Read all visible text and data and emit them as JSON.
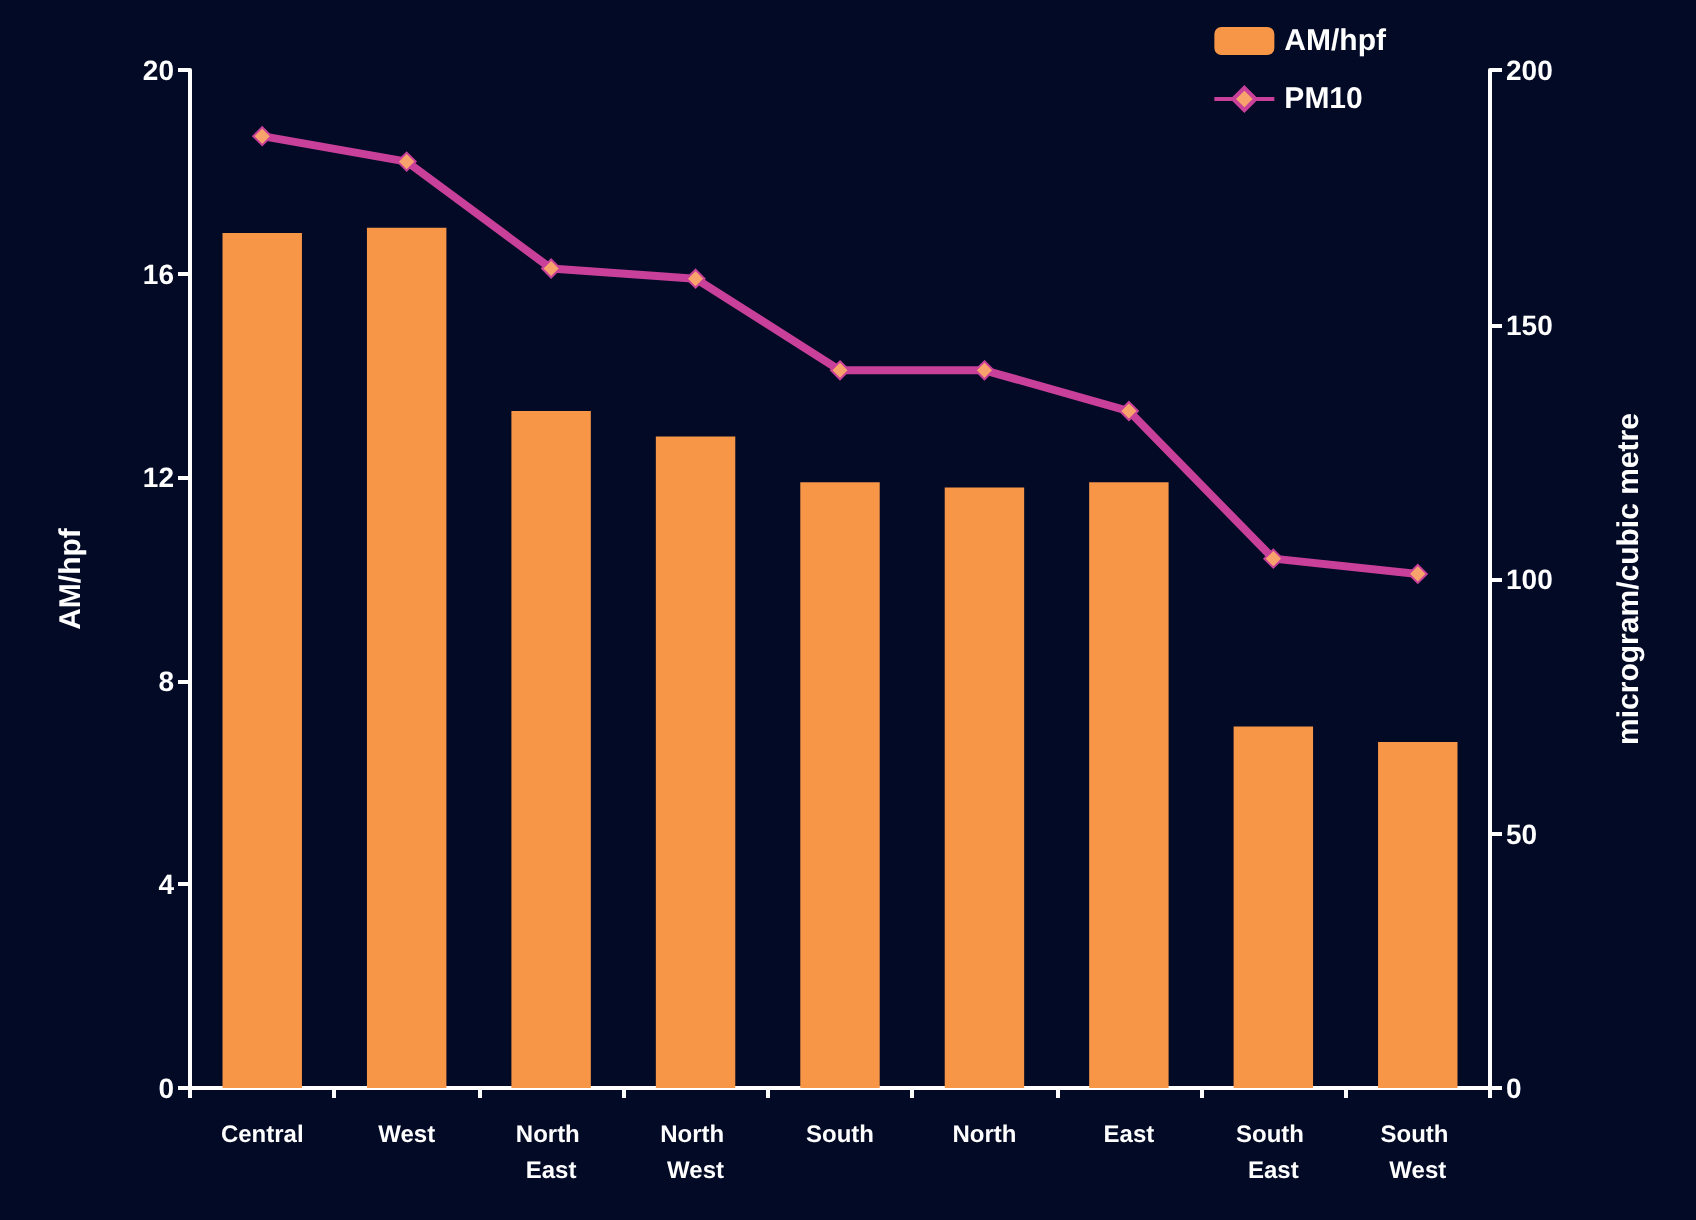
{
  "chart_data": {
    "type": "bar",
    "categories": [
      "Central",
      "West",
      "North East",
      "North West",
      "South",
      "North",
      "East",
      "South East",
      "South West"
    ],
    "series": [
      {
        "name": "AM/hpf",
        "color": "#f79646",
        "values": [
          16.8,
          16.9,
          13.3,
          12.8,
          11.9,
          11.8,
          11.9,
          7.1,
          6.8
        ]
      },
      {
        "name": "PM10",
        "type": "line",
        "axis": "y2",
        "color": "#c9409a",
        "marker": "diamond",
        "values": [
          187,
          182,
          161,
          159,
          141,
          141,
          133,
          104,
          101
        ]
      }
    ],
    "ylabel": "AM/hpf",
    "y2label": "microgram/cubic metre",
    "ylim": [
      0,
      20
    ],
    "yticks": [
      0,
      4,
      8,
      12,
      16,
      20
    ],
    "y2lim": [
      0,
      200
    ],
    "y2ticks": [
      0,
      50,
      100,
      150,
      200
    ],
    "grid": false,
    "legend": "top right"
  }
}
